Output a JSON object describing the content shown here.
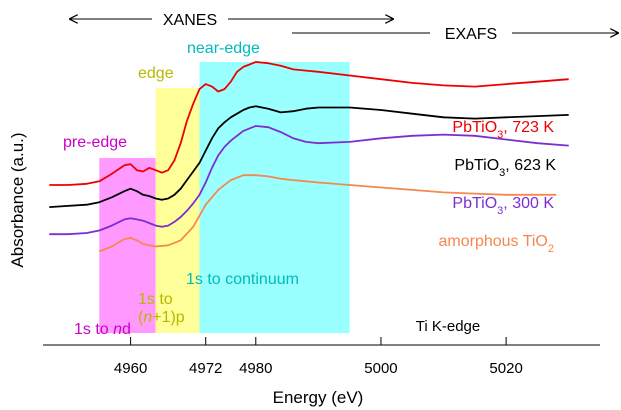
{
  "chart_data": {
    "type": "line",
    "title": "",
    "xlabel": "Energy (eV)",
    "ylabel": "Absorbance (a.u.)",
    "xlim": [
      4946,
      5035
    ],
    "ylim": [
      0,
      100
    ],
    "x_ticks": [
      4960,
      4972,
      4980,
      5000,
      5020
    ],
    "x_tick_labels": [
      "4960",
      "4972",
      "4980",
      "5000",
      "5020"
    ],
    "grid": false,
    "annotations": {
      "xanes": "XANES",
      "exafs": "EXAFS",
      "edge_note": "Ti K-edge"
    },
    "regions": [
      {
        "id": "pre_edge",
        "label": "pre-edge",
        "sublabel_main": "1s to ",
        "sublabel_ital": "n",
        "sublabel_tail": "d",
        "x_start": 4955,
        "x_end": 4964,
        "color": "#ff99ff",
        "label_color": "#cc00cc"
      },
      {
        "id": "edge",
        "label": "edge",
        "sublabel_main": "1s to",
        "sublabel_line2_open": "(",
        "sublabel_line2_ital": "n",
        "sublabel_line2_tail": "+1)p",
        "x_start": 4964,
        "x_end": 4971,
        "color": "#ffff99",
        "label_color": "#b8b800"
      },
      {
        "id": "near_edge",
        "label": "near-edge",
        "sublabel_main": "1s to continuum",
        "x_start": 4971,
        "x_end": 4995,
        "color": "#99ffff",
        "label_color": "#00bbbb"
      }
    ],
    "series": [
      {
        "name_main": "PbTiO",
        "name_sub": "3",
        "name_tail": ", 723 K",
        "color": "#ee0000",
        "x": [
          4947,
          4950,
          4953,
          4955,
          4957,
          4959,
          4960,
          4961,
          4962,
          4963,
          4964,
          4965,
          4966,
          4967,
          4968,
          4969,
          4970,
          4971,
          4972,
          4973,
          4974,
          4975,
          4976,
          4977,
          4978,
          4979,
          4980,
          4982,
          4984,
          4986,
          4988,
          4990,
          4995,
          5000,
          5005,
          5010,
          5015,
          5020,
          5025,
          5030
        ],
        "y": [
          50,
          50,
          50.5,
          51.5,
          54.5,
          58,
          58.5,
          56,
          55.5,
          57,
          56,
          55,
          56,
          60,
          67,
          76,
          83,
          89,
          91,
          90,
          88,
          89,
          92,
          96,
          98,
          99,
          100,
          99.5,
          98.5,
          97,
          96.5,
          96,
          94.5,
          93,
          91.5,
          90.5,
          90,
          91,
          92,
          93
        ]
      },
      {
        "name_main": "PbTiO",
        "name_sub": "3",
        "name_tail": ", 623 K",
        "color": "#000000",
        "x": [
          4947,
          4950,
          4953,
          4955,
          4957,
          4959,
          4960,
          4961,
          4962,
          4963,
          4964,
          4965,
          4966,
          4967,
          4968,
          4969,
          4970,
          4971,
          4972,
          4973,
          4974,
          4975,
          4976,
          4977,
          4978,
          4979,
          4980,
          4982,
          4984,
          4986,
          4988,
          4990,
          4995,
          5000,
          5005,
          5010,
          5015,
          5020,
          5025,
          5030
        ],
        "y": [
          41,
          41.5,
          42,
          43,
          45,
          47.5,
          48.5,
          47.5,
          46,
          45.5,
          44.5,
          44,
          44.5,
          46,
          48.5,
          52,
          55.5,
          59,
          64,
          69,
          73,
          75.5,
          77.5,
          79,
          80.5,
          81.5,
          82,
          81,
          79.5,
          80,
          81,
          81.5,
          81.5,
          80.5,
          79,
          77.5,
          77,
          77.5,
          78,
          78.5
        ]
      },
      {
        "name_main": "PbTiO",
        "name_sub": "3",
        "name_tail": ", 300 K",
        "color": "#7d2ed1",
        "x": [
          4947,
          4950,
          4953,
          4955,
          4957,
          4959,
          4960,
          4961,
          4962,
          4963,
          4964,
          4965,
          4966,
          4967,
          4968,
          4969,
          4970,
          4971,
          4972,
          4973,
          4974,
          4975,
          4976,
          4977,
          4978,
          4979,
          4980,
          4982,
          4984,
          4986,
          4988,
          4990,
          4995,
          5000,
          5005,
          5010,
          5015,
          5020,
          5025,
          5030
        ],
        "y": [
          30,
          30,
          30.5,
          31.5,
          33.5,
          36,
          36.5,
          36,
          35.5,
          34.5,
          33.5,
          33,
          33.5,
          35,
          37,
          39.5,
          42.5,
          46,
          51,
          57,
          62,
          65.5,
          68,
          70,
          72,
          73,
          74,
          73.5,
          71.5,
          69,
          67.5,
          67,
          67.5,
          69,
          70,
          70.5,
          70,
          68.5,
          67,
          66
        ]
      },
      {
        "name_main": "amorphous TiO",
        "name_sub": "2",
        "name_tail": "",
        "color": "#f5884e",
        "x": [
          4955,
          4957,
          4959,
          4960,
          4961,
          4962,
          4964,
          4966,
          4968,
          4970,
          4972,
          4974,
          4976,
          4978,
          4980,
          4982,
          4984,
          4986,
          4988,
          4990,
          4995,
          5000,
          5005,
          5010,
          5015,
          5020,
          5025,
          5028
        ],
        "y": [
          23,
          25,
          28,
          28.5,
          27.5,
          26,
          25,
          25.5,
          27.5,
          33,
          42,
          48,
          52,
          54,
          54,
          53.5,
          52.5,
          52,
          51.5,
          51,
          50,
          49,
          48,
          47,
          46.5,
          46,
          46,
          46
        ]
      }
    ]
  }
}
